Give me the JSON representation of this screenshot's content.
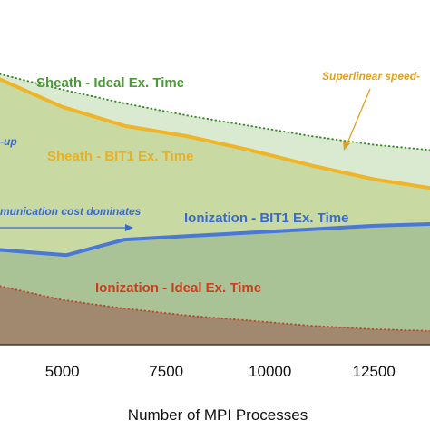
{
  "chart_data": {
    "type": "area",
    "xlabel": "Number of MPI Processes",
    "ylabel": "",
    "title": "",
    "xlim": [
      3500,
      13850
    ],
    "ylim": [
      0,
      100
    ],
    "x_ticks": [
      5000,
      7500,
      10000,
      12500
    ],
    "x_tick_labels": [
      "5000",
      "7500",
      "10000",
      "12500"
    ],
    "grid": false,
    "series": [
      {
        "name": "Sheath - Ideal Ex. Time",
        "style": "dotted",
        "color": "#3a8a2a",
        "fill": "#d9ead0",
        "x": [
          3500,
          5000,
          6500,
          8000,
          9500,
          11000,
          12500,
          13850
        ],
        "y": [
          78.5,
          74,
          70,
          66.5,
          63.5,
          60.5,
          58,
          56.5
        ]
      },
      {
        "name": "Sheath - BIT1 Ex. Time",
        "style": "solid",
        "color": "#f0b429",
        "fill": "#c9d9a2",
        "x": [
          3500,
          5000,
          6500,
          8000,
          9500,
          11000,
          12500,
          13850
        ],
        "y": [
          77,
          69,
          63.5,
          60.5,
          56.5,
          52,
          48,
          45.5
        ]
      },
      {
        "name": "Ionization - BIT1 Ex. Time",
        "style": "solid",
        "color": "#4a78d8",
        "fill": "#a9c396",
        "x": [
          3500,
          5100,
          6500,
          8000,
          9500,
          11000,
          12500,
          13850
        ],
        "y": [
          27.5,
          26,
          30.5,
          31.5,
          32.5,
          33.5,
          34.5,
          35
        ]
      },
      {
        "name": "Ionization - Ideal Ex. Time",
        "style": "dotted",
        "color": "#b54a2c",
        "fill": "#a0896e",
        "x": [
          3500,
          5000,
          6500,
          8000,
          9500,
          11000,
          12500,
          13850
        ],
        "y": [
          17,
          13,
          10.5,
          8.5,
          7,
          5.5,
          4.5,
          4
        ]
      }
    ],
    "annotations": [
      {
        "text": "Superlinear speed-",
        "color": "#e0a020",
        "style": "italic"
      },
      {
        "text": "-up",
        "color": "#3a6ad0",
        "style": "italic"
      },
      {
        "text": "munication cost dominates",
        "color": "#3a6ad0",
        "style": "italic"
      }
    ],
    "labels": [
      {
        "text": "Sheath - Ideal Ex. Time",
        "color": "#4a9a35"
      },
      {
        "text": "Sheath - BIT1 Ex. Time",
        "color": "#e8b024"
      },
      {
        "text": "Ionization - BIT1 Ex. Time",
        "color": "#3a6ad0"
      },
      {
        "text": "Ionization - Ideal Ex. Time",
        "color": "#c8401e"
      }
    ]
  }
}
